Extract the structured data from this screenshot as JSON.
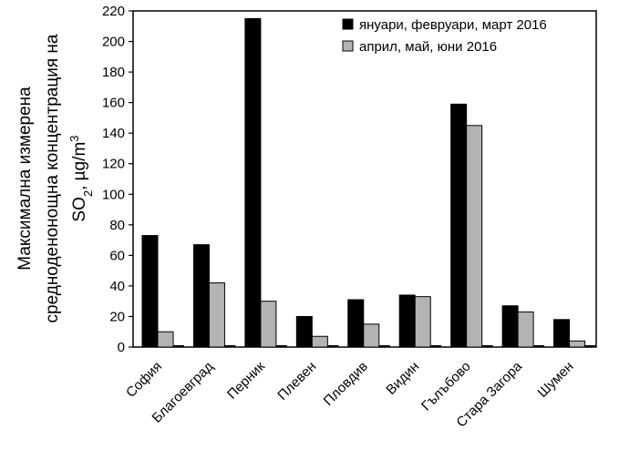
{
  "chart_data": {
    "type": "bar",
    "title": "",
    "xlabel": "",
    "ylabel": {
      "line1": "Максимална  измерена",
      "line2": "средноденонощна концентрация на",
      "line3_prefix": "SO",
      "line3_sub": "2",
      "line3_mid": ", µg/m",
      "line3_sup": "3"
    },
    "ylim": [
      0,
      220
    ],
    "yticks": [
      0,
      20,
      40,
      60,
      80,
      100,
      120,
      140,
      160,
      180,
      200,
      220
    ],
    "grid": false,
    "legend_position": "top-right",
    "categories": [
      "София",
      "Благоевград",
      "Перник",
      "Плевен",
      "Пловдив",
      "Видин",
      "Гълъбово",
      "Стара Загора",
      "Шумен"
    ],
    "series": [
      {
        "name": "януари, февруари, март 2016",
        "color": "#000000",
        "values": [
          73,
          67,
          215,
          20,
          31,
          34,
          159,
          27,
          18
        ]
      },
      {
        "name": "април, май, юни 2016",
        "color": "#b3b3b3",
        "values": [
          10,
          42,
          30,
          7,
          15,
          33,
          145,
          23,
          4
        ]
      }
    ]
  }
}
